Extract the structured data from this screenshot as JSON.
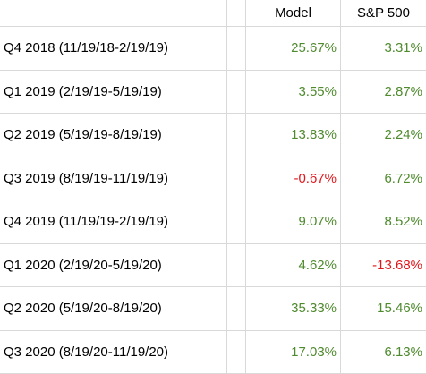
{
  "headers": {
    "model": "Model",
    "sp500": "S&P 500"
  },
  "colors": {
    "positive": "#4f8a2e",
    "negative": "#e0171c",
    "gridline": "#d9d9d9"
  },
  "rows": [
    {
      "period": "Q4 2018 (11/19/18-2/19/19)",
      "model": "25.67%",
      "model_sign": "positive",
      "sp500": "3.31%",
      "sp500_sign": "positive"
    },
    {
      "period": "Q1 2019 (2/19/19-5/19/19)",
      "model": "3.55%",
      "model_sign": "positive",
      "sp500": "2.87%",
      "sp500_sign": "positive"
    },
    {
      "period": "Q2 2019 (5/19/19-8/19/19)",
      "model": "13.83%",
      "model_sign": "positive",
      "sp500": "2.24%",
      "sp500_sign": "positive"
    },
    {
      "period": "Q3 2019 (8/19/19-11/19/19)",
      "model": "-0.67%",
      "model_sign": "negative",
      "sp500": "6.72%",
      "sp500_sign": "positive"
    },
    {
      "period": "Q4 2019 (11/19/19-2/19/19)",
      "model": "9.07%",
      "model_sign": "positive",
      "sp500": "8.52%",
      "sp500_sign": "positive"
    },
    {
      "period": "Q1 2020 (2/19/20-5/19/20)",
      "model": "4.62%",
      "model_sign": "positive",
      "sp500": "-13.68%",
      "sp500_sign": "negative"
    },
    {
      "period": "Q2 2020 (5/19/20-8/19/20)",
      "model": "35.33%",
      "model_sign": "positive",
      "sp500": "15.46%",
      "sp500_sign": "positive"
    },
    {
      "period": "Q3 2020 (8/19/20-11/19/20)",
      "model": "17.03%",
      "model_sign": "positive",
      "sp500": "6.13%",
      "sp500_sign": "positive"
    }
  ]
}
